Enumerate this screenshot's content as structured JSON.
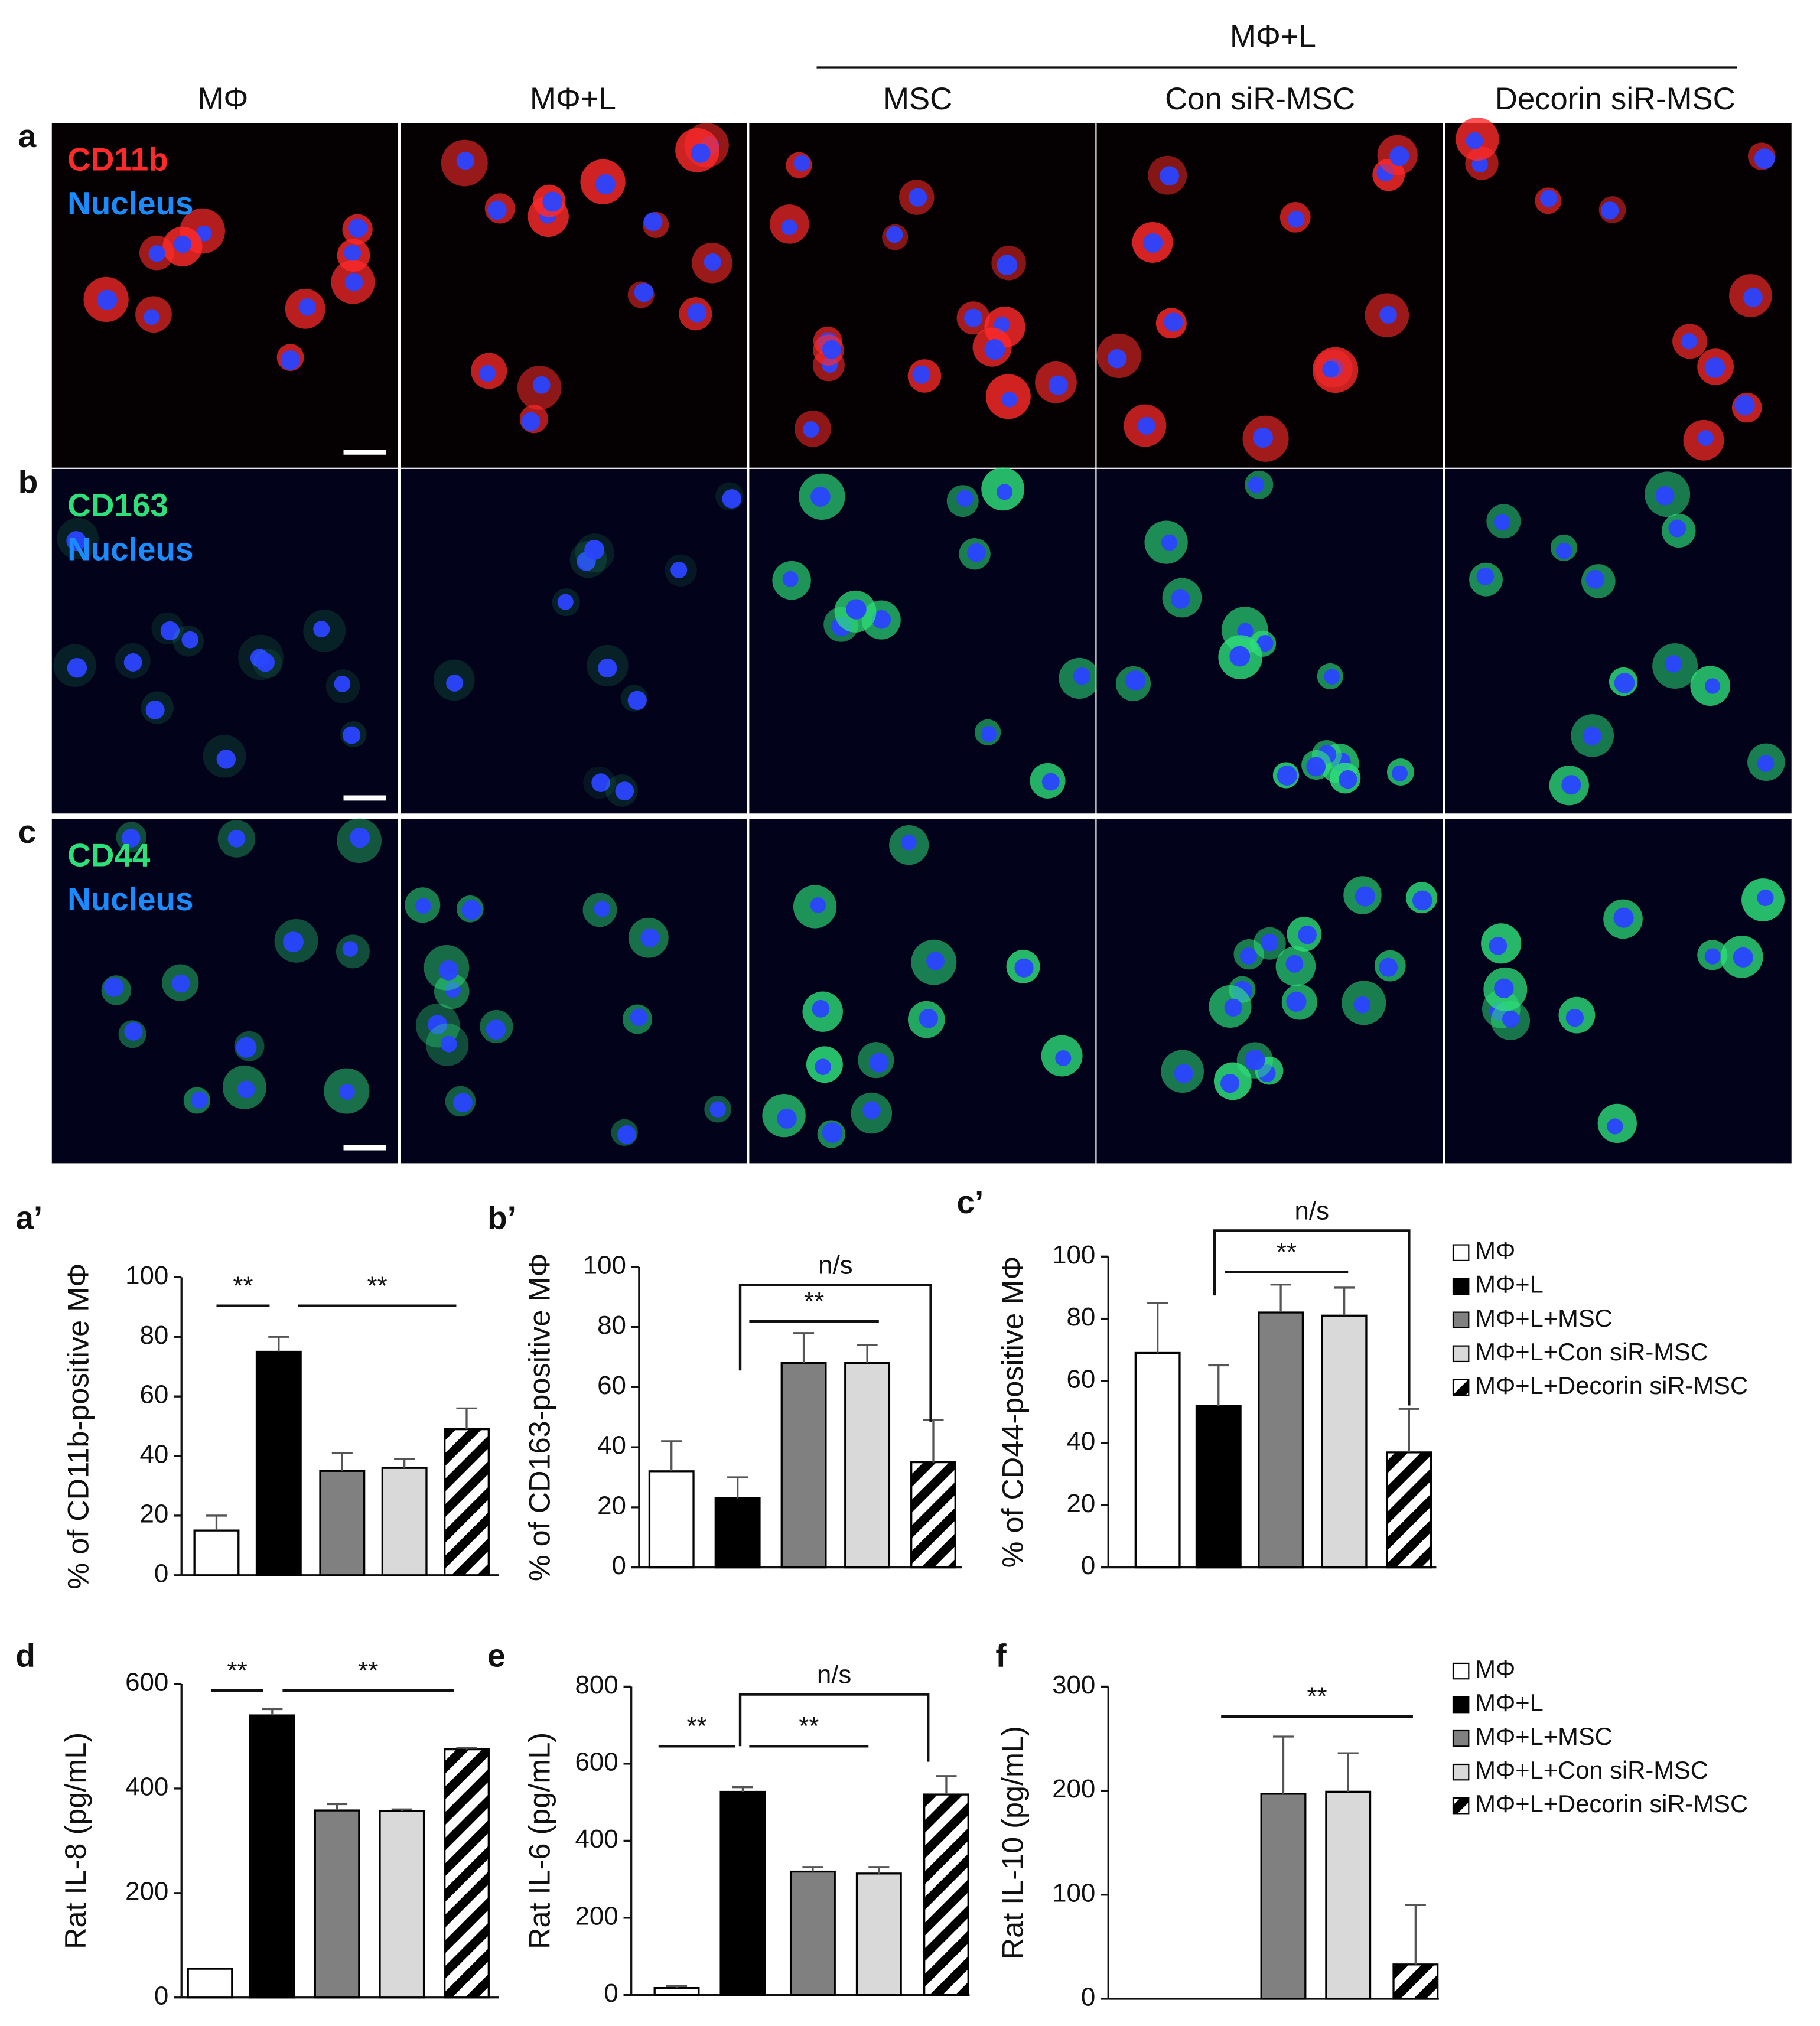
{
  "figure": {
    "group_header": "MΦ+L",
    "columns": [
      "MΦ",
      "MΦ+L",
      "MSC",
      "Con siR-MSC",
      "Decorin siR-MSC"
    ],
    "rows": [
      {
        "label": "a",
        "marker": "CD11b",
        "stain": "Nucleus"
      },
      {
        "label": "b",
        "marker": "CD163",
        "stain": "Nucleus"
      },
      {
        "label": "c",
        "marker": "CD44",
        "stain": "Nucleus"
      }
    ]
  },
  "chart_data": [
    {
      "type": "bar",
      "panel": "a’",
      "y_label": "% of CD11b-positive MΦ",
      "values": [
        15,
        75,
        35,
        36,
        49
      ],
      "errors": [
        5,
        5,
        6,
        3,
        7
      ],
      "colors": [
        "#ffffff",
        "#000000",
        "#808080",
        "#d9d9d9",
        "hatch"
      ],
      "ylim": [
        0,
        100
      ],
      "yticks": [
        0,
        20,
        40,
        60,
        80,
        100
      ],
      "annotations": [
        "**",
        "**"
      ]
    },
    {
      "type": "bar",
      "panel": "b’",
      "y_label": "% of CD163-positive MΦ",
      "values": [
        32,
        23,
        68,
        68,
        35
      ],
      "errors": [
        10,
        7,
        10,
        6,
        14
      ],
      "colors": [
        "#ffffff",
        "#000000",
        "#808080",
        "#d9d9d9",
        "hatch"
      ],
      "ylim": [
        0,
        100
      ],
      "yticks": [
        0,
        20,
        40,
        60,
        80,
        100
      ],
      "annotations": [
        "n/s",
        "**"
      ]
    },
    {
      "type": "bar",
      "panel": "c’",
      "y_label": "% of CD44-positive MΦ",
      "categories": [
        "MΦ",
        "MΦ+L",
        "MΦ+L+MSC",
        "MΦ+L+Con siR-MSC",
        "MΦ+L+Decorin siR-MSC"
      ],
      "values": [
        69,
        52,
        82,
        81,
        37
      ],
      "errors": [
        16,
        13,
        9,
        9,
        14
      ],
      "colors": [
        "#ffffff",
        "#000000",
        "#808080",
        "#d9d9d9",
        "hatch"
      ],
      "ylim": [
        0,
        100
      ],
      "yticks": [
        0,
        20,
        40,
        60,
        80,
        100
      ],
      "annotations": [
        "n/s",
        "**"
      ]
    },
    {
      "type": "bar",
      "panel": "d",
      "y_label": "Rat IL-8 (pg/mL)",
      "values": [
        55,
        540,
        358,
        357,
        475
      ],
      "errors": [
        null,
        12,
        12,
        3,
        3
      ],
      "colors": [
        "#ffffff",
        "#000000",
        "#808080",
        "#d9d9d9",
        "hatch"
      ],
      "ylim": [
        0,
        600
      ],
      "yticks": [
        0,
        200,
        400,
        600
      ],
      "annotations": [
        "**",
        "**"
      ]
    },
    {
      "type": "bar",
      "panel": "e",
      "y_label": "Rat IL-6 (pg/mL)",
      "values": [
        18,
        527,
        320,
        315,
        520
      ],
      "errors": [
        5,
        12,
        12,
        17,
        48
      ],
      "colors": [
        "#ffffff",
        "#000000",
        "#808080",
        "#d9d9d9",
        "hatch"
      ],
      "ylim": [
        0,
        800
      ],
      "yticks": [
        0,
        200,
        400,
        600,
        800
      ],
      "annotations": [
        "**",
        "**",
        "n/s"
      ]
    },
    {
      "type": "bar",
      "panel": "f",
      "y_label": "Rat IL-10 (pg/mL)",
      "categories": [
        "MΦ",
        "MΦ+L",
        "MΦ+L+MSC",
        "MΦ+L+Con siR-MSC",
        "MΦ+L+Decorin siR-MSC"
      ],
      "values": [
        0,
        0,
        197,
        199,
        33
      ],
      "errors": [
        null,
        null,
        55,
        37,
        57
      ],
      "colors": [
        "#ffffff",
        "#000000",
        "#808080",
        "#d9d9d9",
        "hatch"
      ],
      "ylim": [
        0,
        300
      ],
      "yticks": [
        0,
        100,
        200,
        300
      ],
      "annotations": [
        "**"
      ]
    }
  ]
}
